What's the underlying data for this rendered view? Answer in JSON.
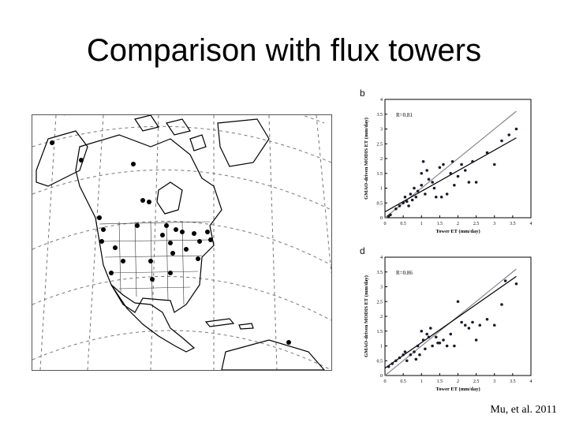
{
  "slide": {
    "title": "Comparison with flux towers",
    "citation": "Mu, et al. 2011"
  },
  "map": {
    "description_icon": "north-america-map-icon",
    "site_color": "#000000"
  },
  "chart_data": [
    {
      "type": "scatter",
      "panel_label": "b",
      "title": "",
      "xlabel": "Tower ET (mm/day)",
      "ylabel": "GMAO-driven MODIS ET (mm/day)",
      "annotation": "R=0.81",
      "xlim": [
        0,
        4
      ],
      "ylim": [
        0,
        4
      ],
      "xticks": [
        0,
        0.5,
        1,
        1.5,
        2,
        2.5,
        3,
        3.5,
        4
      ],
      "yticks": [
        0,
        0.5,
        1,
        1.5,
        2,
        2.5,
        3,
        3.5,
        4
      ],
      "grid": false,
      "points": [
        [
          0.1,
          0.05
        ],
        [
          0.15,
          0.1
        ],
        [
          0.3,
          0.3
        ],
        [
          0.4,
          0.4
        ],
        [
          0.5,
          0.5
        ],
        [
          0.55,
          0.7
        ],
        [
          0.6,
          0.55
        ],
        [
          0.65,
          0.4
        ],
        [
          0.7,
          0.8
        ],
        [
          0.75,
          0.6
        ],
        [
          0.8,
          1.0
        ],
        [
          0.85,
          0.7
        ],
        [
          0.9,
          0.9
        ],
        [
          1.0,
          1.5
        ],
        [
          1.0,
          1.1
        ],
        [
          1.1,
          0.8
        ],
        [
          1.15,
          1.6
        ],
        [
          1.2,
          1.3
        ],
        [
          1.3,
          1.2
        ],
        [
          1.35,
          1.0
        ],
        [
          1.4,
          0.7
        ],
        [
          1.5,
          1.7
        ],
        [
          1.55,
          0.7
        ],
        [
          1.6,
          1.8
        ],
        [
          1.7,
          0.8
        ],
        [
          1.8,
          1.5
        ],
        [
          1.85,
          1.9
        ],
        [
          1.9,
          1.1
        ],
        [
          2.0,
          1.4
        ],
        [
          2.1,
          1.8
        ],
        [
          2.2,
          1.6
        ],
        [
          2.3,
          1.2
        ],
        [
          2.5,
          1.2
        ],
        [
          2.8,
          2.2
        ],
        [
          3.0,
          1.8
        ],
        [
          3.2,
          2.6
        ],
        [
          3.4,
          2.8
        ],
        [
          3.6,
          3.0
        ],
        [
          2.4,
          1.9
        ],
        [
          1.05,
          1.9
        ]
      ],
      "lines": [
        {
          "kind": "one-to-one",
          "from": [
            0,
            0
          ],
          "to": [
            3.6,
            3.6
          ],
          "color": "#888888"
        },
        {
          "kind": "regression",
          "from": [
            0,
            0.2
          ],
          "to": [
            3.6,
            2.7
          ],
          "color": "#000000"
        }
      ]
    },
    {
      "type": "scatter",
      "panel_label": "d",
      "title": "",
      "xlabel": "Tower ET (mm/day)",
      "ylabel": "GMAO-driven MODIS ET (mm/day)",
      "annotation": "R=0.86",
      "xlim": [
        0,
        4
      ],
      "ylim": [
        0,
        4
      ],
      "xticks": [
        0,
        0.5,
        1,
        1.5,
        2,
        2.5,
        3,
        3.5,
        4
      ],
      "yticks": [
        0,
        0.5,
        1,
        1.5,
        2,
        2.5,
        3,
        3.5,
        4
      ],
      "grid": false,
      "points": [
        [
          0.1,
          0.3
        ],
        [
          0.2,
          0.4
        ],
        [
          0.3,
          0.5
        ],
        [
          0.4,
          0.6
        ],
        [
          0.5,
          0.7
        ],
        [
          0.55,
          0.8
        ],
        [
          0.6,
          0.5
        ],
        [
          0.7,
          0.7
        ],
        [
          0.8,
          0.8
        ],
        [
          0.85,
          0.55
        ],
        [
          0.9,
          1.0
        ],
        [
          0.95,
          0.7
        ],
        [
          1.0,
          1.5
        ],
        [
          1.05,
          1.2
        ],
        [
          1.1,
          0.9
        ],
        [
          1.2,
          1.3
        ],
        [
          1.25,
          1.6
        ],
        [
          1.3,
          1.0
        ],
        [
          1.4,
          1.3
        ],
        [
          1.5,
          1.1
        ],
        [
          1.6,
          1.2
        ],
        [
          1.7,
          1.0
        ],
        [
          1.8,
          1.4
        ],
        [
          1.9,
          1.0
        ],
        [
          2.0,
          2.5
        ],
        [
          2.1,
          1.8
        ],
        [
          2.2,
          1.7
        ],
        [
          2.3,
          1.6
        ],
        [
          2.4,
          1.8
        ],
        [
          2.5,
          1.2
        ],
        [
          2.6,
          1.7
        ],
        [
          2.8,
          1.9
        ],
        [
          3.0,
          1.7
        ],
        [
          3.2,
          2.4
        ],
        [
          3.3,
          3.2
        ],
        [
          3.6,
          3.1
        ],
        [
          1.15,
          1.4
        ],
        [
          1.45,
          1.1
        ]
      ],
      "lines": [
        {
          "kind": "one-to-one",
          "from": [
            0,
            0
          ],
          "to": [
            3.6,
            3.6
          ],
          "color": "#888888"
        },
        {
          "kind": "regression",
          "from": [
            0,
            0.25
          ],
          "to": [
            3.6,
            3.35
          ],
          "color": "#000000"
        }
      ]
    }
  ]
}
